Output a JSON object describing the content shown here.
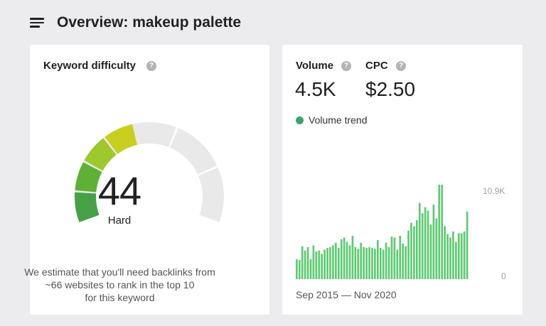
{
  "header": {
    "menu_icon": "hamburger-menu-icon",
    "title": "Overview: makeup palette"
  },
  "keyword_difficulty": {
    "title": "Keyword difficulty",
    "help_icon": "question-mark-icon",
    "score": "44",
    "score_value": 44,
    "rating": "Hard",
    "description_lines": [
      "We estimate that you'll need backlinks from",
      "~66 websites to rank in the top 10",
      "for this keyword"
    ],
    "colors": {
      "seg1": "#47a046",
      "seg2": "#5eb135",
      "seg3": "#9dc92c",
      "seg4": "#c8cf1e",
      "empty": "#e9e9ea"
    }
  },
  "volume": {
    "label": "Volume",
    "value": "4.5K",
    "help_icon": "question-mark-icon"
  },
  "cpc": {
    "label": "CPC",
    "value": "$2.50",
    "help_icon": "question-mark-icon"
  },
  "trend": {
    "legend_label": "Volume trend",
    "legend_color": "#3fa46a",
    "bar_color": "#5fca72",
    "y_max_label": "10.9K",
    "y_min_label": "0",
    "date_range": "Sep 2015 — Nov 2020"
  },
  "chart_data": {
    "type": "bar",
    "title": "",
    "series": [
      {
        "name": "Volume trend",
        "values": [
          2300,
          2200,
          3800,
          3300,
          3700,
          2300,
          3900,
          3200,
          3300,
          2900,
          3400,
          3600,
          3700,
          3900,
          4200,
          3600,
          4600,
          4800,
          4300,
          3900,
          5000,
          3700,
          3500,
          4200,
          3700,
          3600,
          3700,
          3600,
          3500,
          4500,
          3600,
          3400,
          4200,
          3700,
          4900,
          4800,
          3400,
          5000,
          4100,
          3800,
          5600,
          6500,
          6100,
          6800,
          8800,
          7600,
          8300,
          7900,
          6300,
          8600,
          7000,
          10900,
          10900,
          6100,
          5200,
          4800,
          5500,
          4300,
          5300,
          5300,
          5500,
          7800
        ]
      }
    ],
    "ylim": [
      0,
      10900
    ],
    "y_tick_labels": [
      "0",
      "10.9K"
    ],
    "x_range": [
      "Sep 2015",
      "Nov 2020"
    ],
    "grid": false
  }
}
